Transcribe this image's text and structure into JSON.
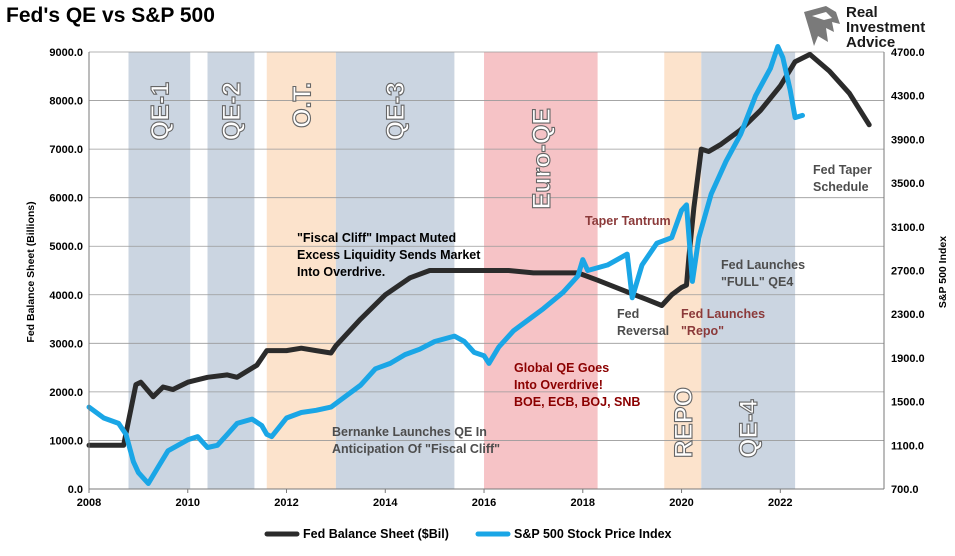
{
  "title": "Fed's QE vs S&P 500",
  "logo": {
    "line1": "Real",
    "line2": "Investment",
    "line3": "Advice",
    "icon": "eagle-head-icon"
  },
  "chart_data": {
    "type": "line",
    "title": "Fed's QE vs S&P 500",
    "xlabel": "",
    "ylabel_left": "Fed Balance Sheet (Billions)",
    "ylabel_right": "S&P 500 Index",
    "xlim": [
      2008,
      2024.1
    ],
    "ylim_left": [
      0,
      9000
    ],
    "ylim_right": [
      700,
      4700
    ],
    "x_ticks": [
      "2008",
      "2010",
      "2012",
      "2014",
      "2016",
      "2018",
      "2020",
      "2022"
    ],
    "y_left_ticks": [
      "0.0",
      "1000.0",
      "2000.0",
      "3000.0",
      "4000.0",
      "5000.0",
      "6000.0",
      "7000.0",
      "8000.0",
      "9000.0"
    ],
    "y_right_ticks": [
      "700.0",
      "1100.0",
      "1500.0",
      "1900.0",
      "2300.0",
      "2700.0",
      "3100.0",
      "3500.0",
      "3900.0",
      "4300.0",
      "4700.0"
    ],
    "grid": true,
    "legend_position": "bottom",
    "bands": [
      {
        "label": "QE-1",
        "start": 2008.8,
        "end": 2010.05,
        "color": "#cbd5e1"
      },
      {
        "label": "QE-2",
        "start": 2010.4,
        "end": 2011.35,
        "color": "#cbd5e1"
      },
      {
        "label": "O.T.",
        "start": 2011.6,
        "end": 2013.0,
        "color": "#fce3cc"
      },
      {
        "label": "QE-3",
        "start": 2013.0,
        "end": 2015.4,
        "color": "#cbd5e1"
      },
      {
        "label": "Euro-QE",
        "start": 2016.0,
        "end": 2018.3,
        "color": "#f6c3c6"
      },
      {
        "label": "REPO",
        "start": 2019.65,
        "end": 2020.4,
        "color": "#fce3cc"
      },
      {
        "label": "QE-4",
        "start": 2020.4,
        "end": 2022.3,
        "color": "#cbd5e1"
      }
    ],
    "series": [
      {
        "name": "Fed Balance Sheet ($Bil)",
        "axis": "left",
        "color": "#2b2b2b",
        "x": [
          2008.0,
          2008.7,
          2008.8,
          2008.95,
          2009.05,
          2009.3,
          2009.5,
          2009.7,
          2010.0,
          2010.4,
          2010.8,
          2011.0,
          2011.4,
          2011.6,
          2012.0,
          2012.3,
          2012.6,
          2012.9,
          2013.0,
          2013.5,
          2014.0,
          2014.5,
          2014.9,
          2015.4,
          2016.0,
          2016.5,
          2017.0,
          2017.5,
          2017.9,
          2018.3,
          2018.8,
          2019.3,
          2019.6,
          2019.8,
          2020.0,
          2020.1,
          2020.15,
          2020.25,
          2020.4,
          2020.55,
          2020.8,
          2021.2,
          2021.6,
          2022.0,
          2022.3,
          2022.6,
          2023.0,
          2023.4,
          2023.8
        ],
        "values": [
          900,
          900,
          1400,
          2150,
          2200,
          1900,
          2100,
          2050,
          2200,
          2300,
          2350,
          2300,
          2550,
          2850,
          2850,
          2900,
          2850,
          2800,
          2950,
          3500,
          4000,
          4350,
          4500,
          4500,
          4500,
          4500,
          4450,
          4450,
          4450,
          4300,
          4100,
          3900,
          3780,
          4000,
          4150,
          4200,
          4800,
          5800,
          7000,
          6950,
          7100,
          7400,
          7800,
          8300,
          8800,
          8950,
          8600,
          8150,
          7500
        ]
      },
      {
        "name": "S&P 500 Stock Price Index",
        "axis": "right",
        "color": "#1aa6e6",
        "x": [
          2008.0,
          2008.3,
          2008.6,
          2008.75,
          2008.9,
          2009.0,
          2009.2,
          2009.4,
          2009.6,
          2009.8,
          2010.0,
          2010.2,
          2010.4,
          2010.6,
          2010.8,
          2011.0,
          2011.3,
          2011.5,
          2011.6,
          2011.7,
          2012.0,
          2012.3,
          2012.6,
          2012.9,
          2013.2,
          2013.5,
          2013.8,
          2014.1,
          2014.4,
          2014.7,
          2015.0,
          2015.4,
          2015.6,
          2015.8,
          2016.0,
          2016.1,
          2016.3,
          2016.6,
          2016.9,
          2017.2,
          2017.6,
          2017.9,
          2018.0,
          2018.1,
          2018.5,
          2018.9,
          2019.0,
          2019.2,
          2019.5,
          2019.8,
          2020.0,
          2020.1,
          2020.22,
          2020.35,
          2020.6,
          2020.9,
          2021.2,
          2021.5,
          2021.8,
          2021.95,
          2022.05,
          2022.2,
          2022.3,
          2022.45
        ],
        "values": [
          1450,
          1350,
          1300,
          1200,
          950,
          850,
          750,
          900,
          1050,
          1100,
          1150,
          1180,
          1080,
          1100,
          1200,
          1300,
          1340,
          1280,
          1200,
          1180,
          1350,
          1400,
          1420,
          1450,
          1550,
          1650,
          1800,
          1850,
          1930,
          1980,
          2050,
          2100,
          2050,
          1950,
          1920,
          1850,
          2000,
          2150,
          2250,
          2350,
          2500,
          2650,
          2800,
          2700,
          2750,
          2850,
          2450,
          2750,
          2950,
          3000,
          3250,
          3300,
          2600,
          3000,
          3400,
          3700,
          3950,
          4300,
          4550,
          4750,
          4650,
          4350,
          4100,
          4120
        ]
      }
    ],
    "annotations": [
      {
        "text": "\"Fiscal Cliff\" Impact Muted\nExcess Liquidity Sends Market\nInto Overdrive.",
        "color": "#000000"
      },
      {
        "text": "Bernanke Launches QE In\nAnticipation Of \"Fiscal Cliff\"",
        "color": "#4d4d4d"
      },
      {
        "text": "Global QE Goes\nInto Overdrive!\nBOE, ECB, BOJ, SNB",
        "color": "#8b0000"
      },
      {
        "text": "Taper Tantrum",
        "color": "#8b3a3a"
      },
      {
        "text": "Fed\nReversal",
        "color": "#4d4d4d"
      },
      {
        "text": "Fed Launches\n\"Repo\"",
        "color": "#8b3a3a"
      },
      {
        "text": "Fed Launches\n\"FULL\" QE4",
        "color": "#4d4d4d"
      },
      {
        "text": "Fed Taper\nSchedule",
        "color": "#4d4d4d"
      }
    ]
  }
}
